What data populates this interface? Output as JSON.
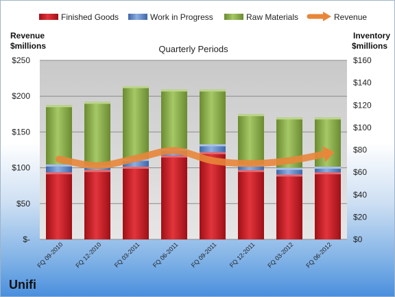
{
  "company": "Unifi",
  "chart_data": {
    "type": "bar",
    "stacked": true,
    "subtitle": "Quarterly Periods",
    "categories": [
      "FQ 09-2010",
      "FQ 12-2010",
      "FQ 03-2011",
      "FQ 06-2011",
      "FQ 09-2011",
      "FQ 12-2011",
      "FQ 03-2012",
      "FQ 06-2012"
    ],
    "left_axis": {
      "label_line1": "Revenue",
      "label_line2": "$millions",
      "ylim": [
        0,
        250
      ],
      "ticks": [
        0,
        50,
        100,
        150,
        200,
        250
      ],
      "tick_labels": [
        "$-",
        "$50",
        "$100",
        "$150",
        "$200",
        "$250"
      ]
    },
    "right_axis": {
      "label_line1": "Inventory",
      "label_line2": "$millions",
      "ylim": [
        0,
        160
      ],
      "ticks": [
        0,
        20,
        40,
        60,
        80,
        100,
        120,
        140,
        160
      ],
      "tick_labels": [
        "$0",
        "$20",
        "$40",
        "$60",
        "$80",
        "$100",
        "$120",
        "$140",
        "$160"
      ]
    },
    "series": [
      {
        "name": "Finished Goods",
        "axis": "right",
        "color": "#c8202a",
        "values": [
          60,
          62,
          65,
          75,
          78,
          62,
          58,
          60
        ]
      },
      {
        "name": "Work in Progress",
        "axis": "right",
        "color": "#5b85c8",
        "values": [
          7,
          4,
          7,
          6,
          7,
          5,
          6,
          5
        ]
      },
      {
        "name": "Raw Materials",
        "axis": "right",
        "color": "#8db04a",
        "values": [
          53,
          57,
          65,
          53,
          49,
          45,
          45,
          44
        ]
      },
      {
        "name": "Revenue",
        "axis": "left",
        "type": "line",
        "color": "#e8863a",
        "values": [
          112,
          103,
          113,
          124,
          110,
          106,
          110,
          120
        ]
      }
    ],
    "grid": true,
    "legend_position": "top"
  }
}
